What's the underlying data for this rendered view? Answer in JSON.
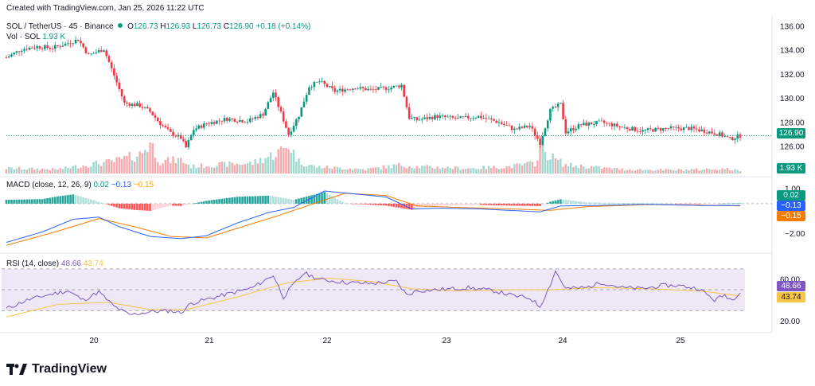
{
  "header": {
    "created": "Created with TradingView.com, Jan 25, 2026 11:22 UTC"
  },
  "legend": {
    "symbol": "SOL / TetherUS · 45 · Binance",
    "open_label": "O",
    "open": "126.73",
    "high_label": "H",
    "high": "126.93",
    "low_label": "L",
    "low": "126.73",
    "close_label": "C",
    "close": "126.90",
    "change": "+0.18 (+0.14%)",
    "vol_label": "Vol · SOL",
    "vol_value": "1.93 K",
    "macd_label": "MACD (close, 12, 26, 9)",
    "macd_hist": "0.02",
    "macd_line": "−0.13",
    "macd_signal": "−0.15",
    "rsi_label": "RSI (14, close)",
    "rsi_value": "48.66",
    "rsi_ma": "43.74"
  },
  "colors": {
    "up": "#089981",
    "down": "#f23645",
    "up_vol": "#9fd8cf",
    "down_vol": "#f7a9ae",
    "macd": "#2962ff",
    "signal": "#f57c00",
    "rsi": "#7e57c2",
    "rsi_ma": "#f7c548",
    "rsi_band": "#ede7f6"
  },
  "branding": {
    "logo_text": "TradingView"
  },
  "chart_data": {
    "type": "candlestick",
    "price_axis": {
      "ticks": [
        "136.00",
        "134.00",
        "132.00",
        "130.00",
        "128.00",
        "126.00"
      ],
      "range": [
        125.2,
        136.6
      ],
      "last_price": "126.90"
    },
    "volume_tag": "1.93 K",
    "macd_axis": {
      "ticks": [
        "1.00",
        "−2.00"
      ],
      "range": [
        -3.0,
        1.6
      ],
      "tags": [
        "0.02",
        "−0.13",
        "−0.15"
      ]
    },
    "rsi_axis": {
      "ticks": [
        "60.00",
        "20.00"
      ],
      "range": [
        12,
        82
      ],
      "upper": 70,
      "lower": 30,
      "tags": [
        "48.66",
        "43.74"
      ]
    },
    "x_axis": {
      "labels": [
        "20",
        "21",
        "22",
        "23",
        "24",
        "25"
      ]
    },
    "anchors": [
      [
        0,
        133.4
      ],
      [
        6,
        134.1
      ],
      [
        12,
        134.3
      ],
      [
        18,
        134.2
      ],
      [
        24,
        134.6
      ],
      [
        28,
        134.9
      ],
      [
        32,
        133.6
      ],
      [
        38,
        134.1
      ],
      [
        42,
        131.9
      ],
      [
        46,
        129.6
      ],
      [
        52,
        129.4
      ],
      [
        56,
        128.9
      ],
      [
        60,
        127.9
      ],
      [
        64,
        127.1
      ],
      [
        68,
        126.7
      ],
      [
        70,
        125.9
      ],
      [
        73,
        127.4
      ],
      [
        78,
        127.9
      ],
      [
        86,
        128.3
      ],
      [
        94,
        128.1
      ],
      [
        100,
        128.7
      ],
      [
        104,
        130.5
      ],
      [
        108,
        128.2
      ],
      [
        110,
        127.0
      ],
      [
        114,
        128.6
      ],
      [
        118,
        131.0
      ],
      [
        122,
        131.4
      ],
      [
        128,
        130.6
      ],
      [
        136,
        130.9
      ],
      [
        142,
        130.7
      ],
      [
        150,
        130.9
      ],
      [
        154,
        131.1
      ],
      [
        157,
        128.4
      ],
      [
        160,
        128.2
      ],
      [
        168,
        128.5
      ],
      [
        176,
        128.3
      ],
      [
        184,
        128.5
      ],
      [
        192,
        128.0
      ],
      [
        198,
        127.4
      ],
      [
        204,
        127.7
      ],
      [
        208,
        126.3
      ],
      [
        212,
        129.0
      ],
      [
        216,
        129.5
      ],
      [
        218,
        127.2
      ],
      [
        224,
        127.8
      ],
      [
        232,
        128.0
      ],
      [
        240,
        127.6
      ],
      [
        248,
        127.3
      ],
      [
        258,
        127.5
      ],
      [
        266,
        127.5
      ],
      [
        272,
        127.3
      ],
      [
        278,
        127.0
      ],
      [
        282,
        126.6
      ],
      [
        286,
        126.9
      ]
    ],
    "macd_anchors": [
      [
        0,
        -2.6
      ],
      [
        14,
        -1.9
      ],
      [
        26,
        -1.05
      ],
      [
        36,
        -0.9
      ],
      [
        44,
        -1.55
      ],
      [
        56,
        -2.2
      ],
      [
        68,
        -2.35
      ],
      [
        78,
        -2.15
      ],
      [
        90,
        -1.3
      ],
      [
        102,
        -0.6
      ],
      [
        112,
        -0.25
      ],
      [
        124,
        0.85
      ],
      [
        136,
        0.65
      ],
      [
        148,
        0.45
      ],
      [
        158,
        -0.35
      ],
      [
        170,
        -0.3
      ],
      [
        184,
        -0.35
      ],
      [
        196,
        -0.45
      ],
      [
        208,
        -0.55
      ],
      [
        216,
        -0.15
      ],
      [
        230,
        -0.12
      ],
      [
        250,
        -0.04
      ],
      [
        270,
        -0.12
      ],
      [
        286,
        -0.13
      ]
    ],
    "signal_anchors": [
      [
        0,
        -2.8
      ],
      [
        20,
        -1.85
      ],
      [
        36,
        -1.0
      ],
      [
        50,
        -1.55
      ],
      [
        64,
        -2.2
      ],
      [
        78,
        -2.3
      ],
      [
        92,
        -1.55
      ],
      [
        106,
        -0.8
      ],
      [
        118,
        -0.1
      ],
      [
        132,
        0.7
      ],
      [
        148,
        0.55
      ],
      [
        160,
        -0.15
      ],
      [
        176,
        -0.25
      ],
      [
        196,
        -0.35
      ],
      [
        212,
        -0.45
      ],
      [
        226,
        -0.2
      ],
      [
        250,
        -0.06
      ],
      [
        270,
        -0.1
      ],
      [
        286,
        -0.15
      ]
    ],
    "rsi_anchors": [
      [
        0,
        32
      ],
      [
        8,
        40
      ],
      [
        16,
        45
      ],
      [
        24,
        49
      ],
      [
        30,
        40
      ],
      [
        36,
        48
      ],
      [
        42,
        34
      ],
      [
        48,
        26
      ],
      [
        56,
        29
      ],
      [
        64,
        30
      ],
      [
        68,
        28
      ],
      [
        72,
        37
      ],
      [
        80,
        42
      ],
      [
        88,
        47
      ],
      [
        96,
        52
      ],
      [
        104,
        64
      ],
      [
        108,
        43
      ],
      [
        112,
        55
      ],
      [
        116,
        66
      ],
      [
        122,
        60
      ],
      [
        132,
        57
      ],
      [
        142,
        56
      ],
      [
        152,
        58
      ],
      [
        156,
        45
      ],
      [
        160,
        49
      ],
      [
        168,
        50
      ],
      [
        180,
        52
      ],
      [
        190,
        49
      ],
      [
        198,
        44
      ],
      [
        204,
        42
      ],
      [
        208,
        34
      ],
      [
        212,
        55
      ],
      [
        214,
        68
      ],
      [
        218,
        51
      ],
      [
        226,
        52
      ],
      [
        232,
        57
      ],
      [
        240,
        52
      ],
      [
        248,
        51
      ],
      [
        256,
        54
      ],
      [
        262,
        54
      ],
      [
        270,
        51
      ],
      [
        276,
        40
      ],
      [
        280,
        45
      ],
      [
        283,
        40
      ],
      [
        286,
        49
      ]
    ],
    "rsi_ma_anchors": [
      [
        0,
        24
      ],
      [
        20,
        36
      ],
      [
        40,
        38
      ],
      [
        56,
        31
      ],
      [
        70,
        31
      ],
      [
        90,
        43
      ],
      [
        110,
        57
      ],
      [
        126,
        61
      ],
      [
        142,
        58
      ],
      [
        158,
        51
      ],
      [
        176,
        49
      ],
      [
        196,
        50
      ],
      [
        212,
        50
      ],
      [
        230,
        52
      ],
      [
        250,
        51
      ],
      [
        270,
        49
      ],
      [
        286,
        44
      ]
    ],
    "volume_anchors": [
      [
        0,
        0.15
      ],
      [
        20,
        0.12
      ],
      [
        34,
        0.28
      ],
      [
        42,
        0.35
      ],
      [
        52,
        0.55
      ],
      [
        56,
        0.9
      ],
      [
        60,
        0.35
      ],
      [
        68,
        0.4
      ],
      [
        72,
        0.2
      ],
      [
        80,
        0.25
      ],
      [
        96,
        0.3
      ],
      [
        104,
        0.55
      ],
      [
        108,
        0.7
      ],
      [
        110,
        0.85
      ],
      [
        114,
        0.35
      ],
      [
        120,
        0.2
      ],
      [
        140,
        0.12
      ],
      [
        154,
        0.25
      ],
      [
        160,
        0.2
      ],
      [
        180,
        0.15
      ],
      [
        196,
        0.2
      ],
      [
        206,
        0.3
      ],
      [
        208,
        0.75
      ],
      [
        212,
        0.5
      ],
      [
        218,
        0.25
      ],
      [
        240,
        0.12
      ],
      [
        260,
        0.1
      ],
      [
        280,
        0.14
      ],
      [
        286,
        0.08
      ]
    ]
  }
}
